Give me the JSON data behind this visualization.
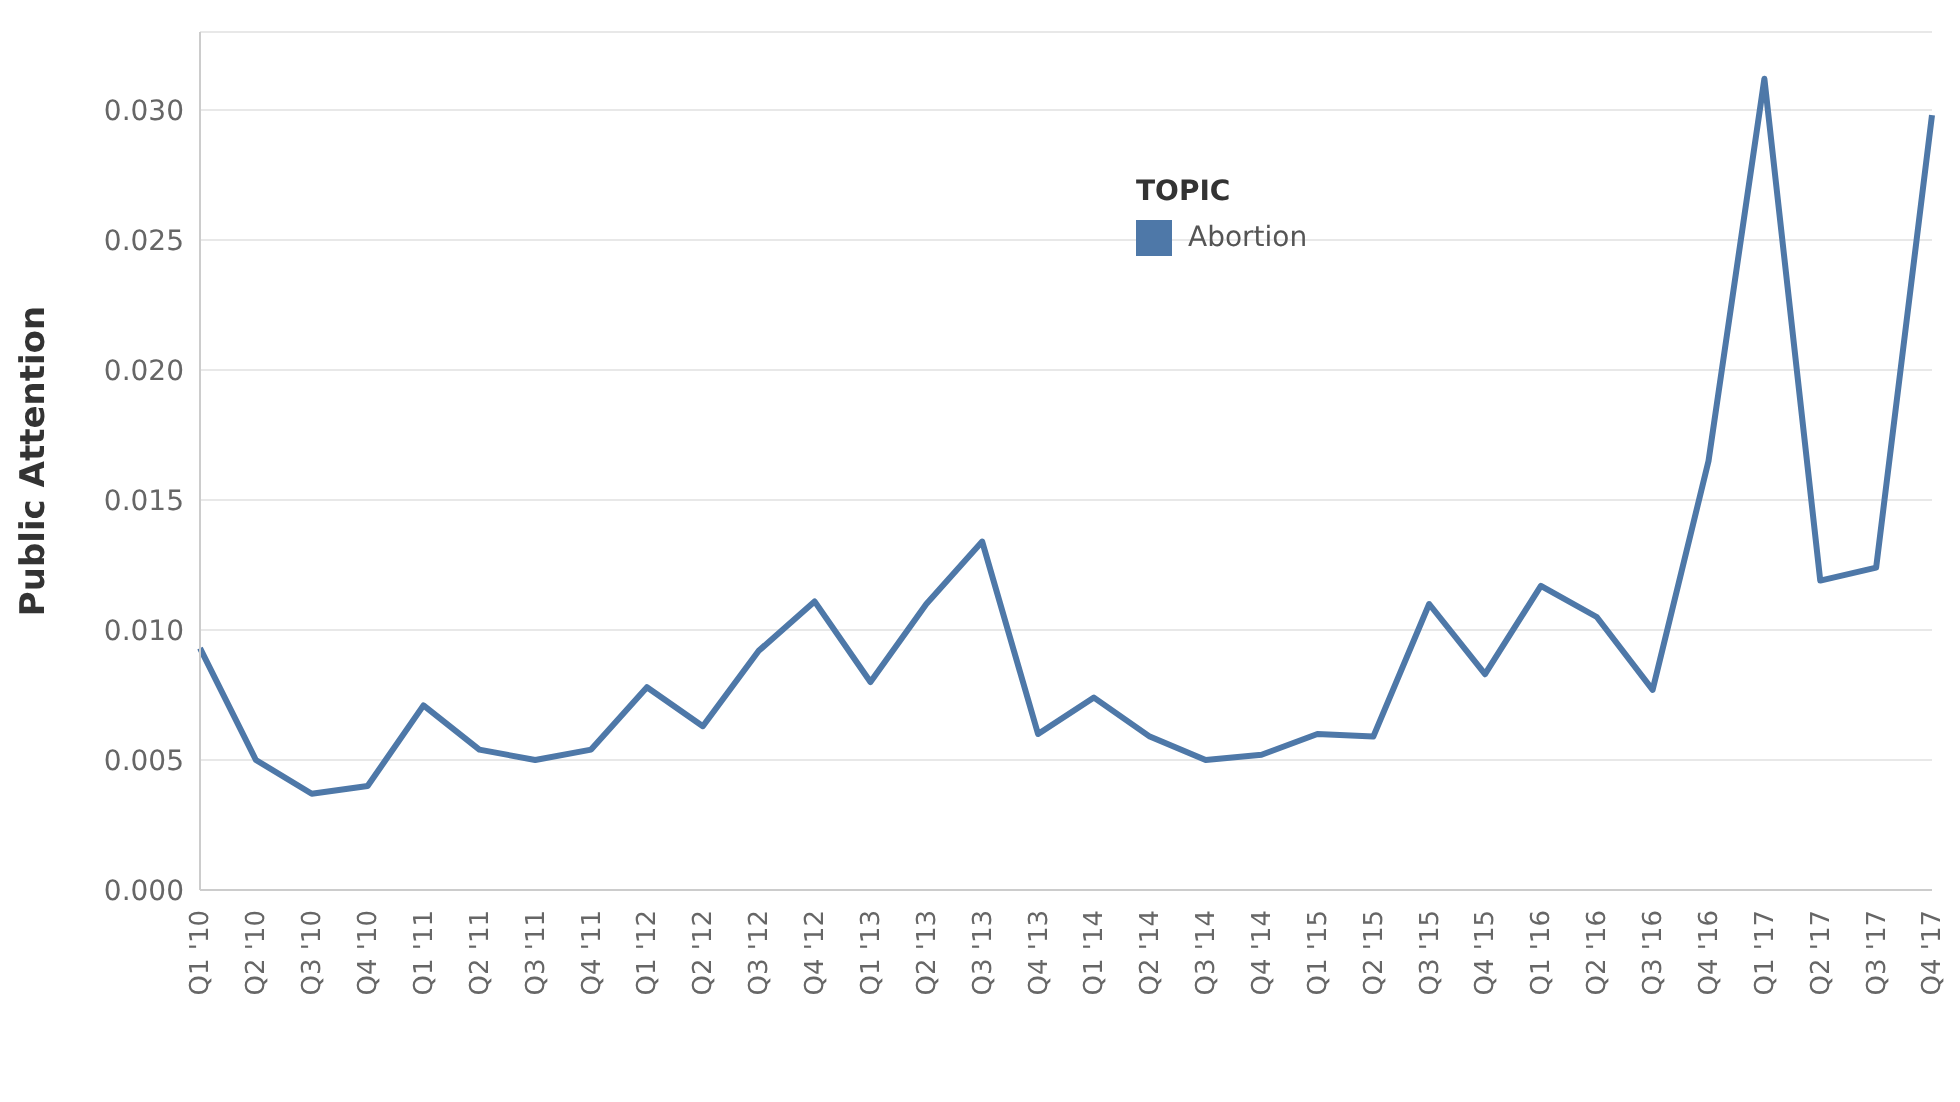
{
  "chart_data": {
    "type": "line",
    "ylabel": "Public Attention",
    "legend_title": "TOPIC",
    "categories": [
      "Q1 '10",
      "Q2 '10",
      "Q3 '10",
      "Q4 '10",
      "Q1 '11",
      "Q2 '11",
      "Q3 '11",
      "Q4 '11",
      "Q1 '12",
      "Q2 '12",
      "Q3 '12",
      "Q4 '12",
      "Q1 '13",
      "Q2 '13",
      "Q3 '13",
      "Q4 '13",
      "Q1 '14",
      "Q2 '14",
      "Q3 '14",
      "Q4 '14",
      "Q1 '15",
      "Q2 '15",
      "Q3 '15",
      "Q4 '15",
      "Q1 '16",
      "Q2 '16",
      "Q3 '16",
      "Q4 '16",
      "Q1 '17",
      "Q2 '17",
      "Q3 '17",
      "Q4 '17"
    ],
    "series": [
      {
        "name": "Abortion",
        "color": "#4e78a8",
        "values": [
          0.0093,
          0.005,
          0.0037,
          0.004,
          0.0071,
          0.0054,
          0.005,
          0.0054,
          0.0078,
          0.0063,
          0.0092,
          0.0111,
          0.008,
          0.011,
          0.0134,
          0.006,
          0.0074,
          0.0059,
          0.005,
          0.0052,
          0.006,
          0.0059,
          0.011,
          0.0083,
          0.0117,
          0.0105,
          0.0077,
          0.0165,
          0.0312,
          0.0119,
          0.0124,
          0.0298
        ]
      }
    ],
    "ylim": [
      0,
      0.033
    ],
    "yticks": [
      {
        "value": 0,
        "label": "0.000"
      },
      {
        "value": 0.005,
        "label": "0.005"
      },
      {
        "value": 0.01,
        "label": "0.010"
      },
      {
        "value": 0.015,
        "label": "0.015"
      },
      {
        "value": 0.02,
        "label": "0.020"
      },
      {
        "value": 0.025,
        "label": "0.025"
      },
      {
        "value": 0.03,
        "label": "0.030"
      }
    ],
    "grid": "y",
    "legend": "top",
    "marker": "none",
    "line_style": "solid"
  }
}
